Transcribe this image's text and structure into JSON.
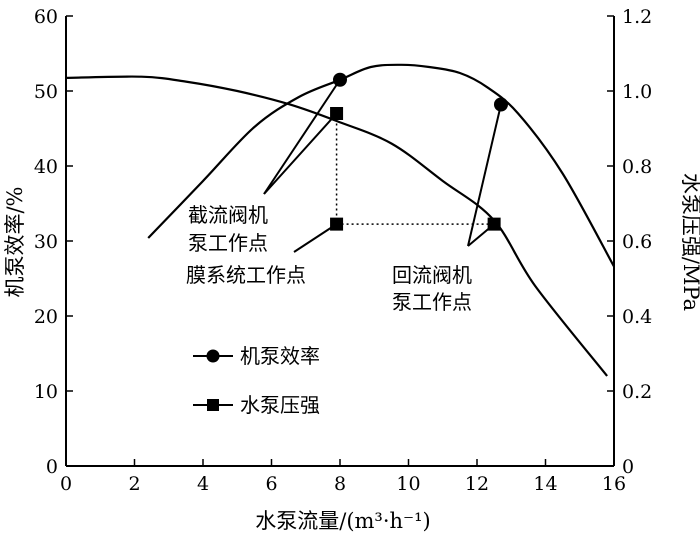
{
  "chart_data": {
    "type": "line",
    "xlabel": "水泵流量/(m³·h⁻¹)",
    "ylabel_left": "机泵效率/%",
    "ylabel_right": "水泵压强/MPa",
    "xlim": [
      0,
      16
    ],
    "ylim_left": [
      0,
      60
    ],
    "ylim_right": [
      0,
      1.2
    ],
    "xticks": [
      "0",
      "2",
      "4",
      "6",
      "8",
      "10",
      "12",
      "14",
      "16"
    ],
    "yticks_left": [
      "0",
      "10",
      "20",
      "30",
      "40",
      "50",
      "60"
    ],
    "yticks_right": [
      "0",
      "0.2",
      "0.4",
      "0.6",
      "0.8",
      "1.0",
      "1.2"
    ],
    "grid": false,
    "legend_position": "lower-left",
    "series": [
      {
        "name": "机泵效率",
        "axis": "left",
        "marker": "circle",
        "x": [
          2.4,
          4,
          5.5,
          6.8,
          8,
          8.9,
          9.8,
          10.6,
          11.5,
          12.3,
          13.2,
          14.5,
          16
        ],
        "y": [
          30.4,
          38,
          45.2,
          49.2,
          51.5,
          53.2,
          53.5,
          53.2,
          52.4,
          50.5,
          47,
          39,
          26.6
        ]
      },
      {
        "name": "水泵压强",
        "axis": "right",
        "marker": "square",
        "x": [
          0,
          2.2,
          3.5,
          5,
          6.5,
          7.9,
          9.5,
          11,
          12.5,
          13.7,
          15.8
        ],
        "y": [
          1.035,
          1.038,
          1.025,
          1.0,
          0.965,
          0.92,
          0.86,
          0.76,
          0.655,
          0.48,
          0.24
        ]
      }
    ],
    "operating_points": [
      {
        "series": "机泵效率",
        "x": 8.0,
        "y": 51.5
      },
      {
        "series": "机泵效率",
        "x": 12.7,
        "y": 48.2
      },
      {
        "series": "水泵压强",
        "x": 7.9,
        "y": 0.94
      },
      {
        "series": "水泵压强",
        "x": 7.9,
        "y": 0.645
      },
      {
        "series": "水泵压强",
        "x": 12.5,
        "y": 0.645
      }
    ],
    "annotations": [
      {
        "label": "截流阀机泵工作点",
        "lines": [
          "截流阀机",
          "泵工作点"
        ]
      },
      {
        "label": "膜系统工作点",
        "lines": [
          "膜系统工作点"
        ]
      },
      {
        "label": "回流阀机泵工作点",
        "lines": [
          "回流阀机",
          "泵工作点"
        ]
      }
    ]
  }
}
